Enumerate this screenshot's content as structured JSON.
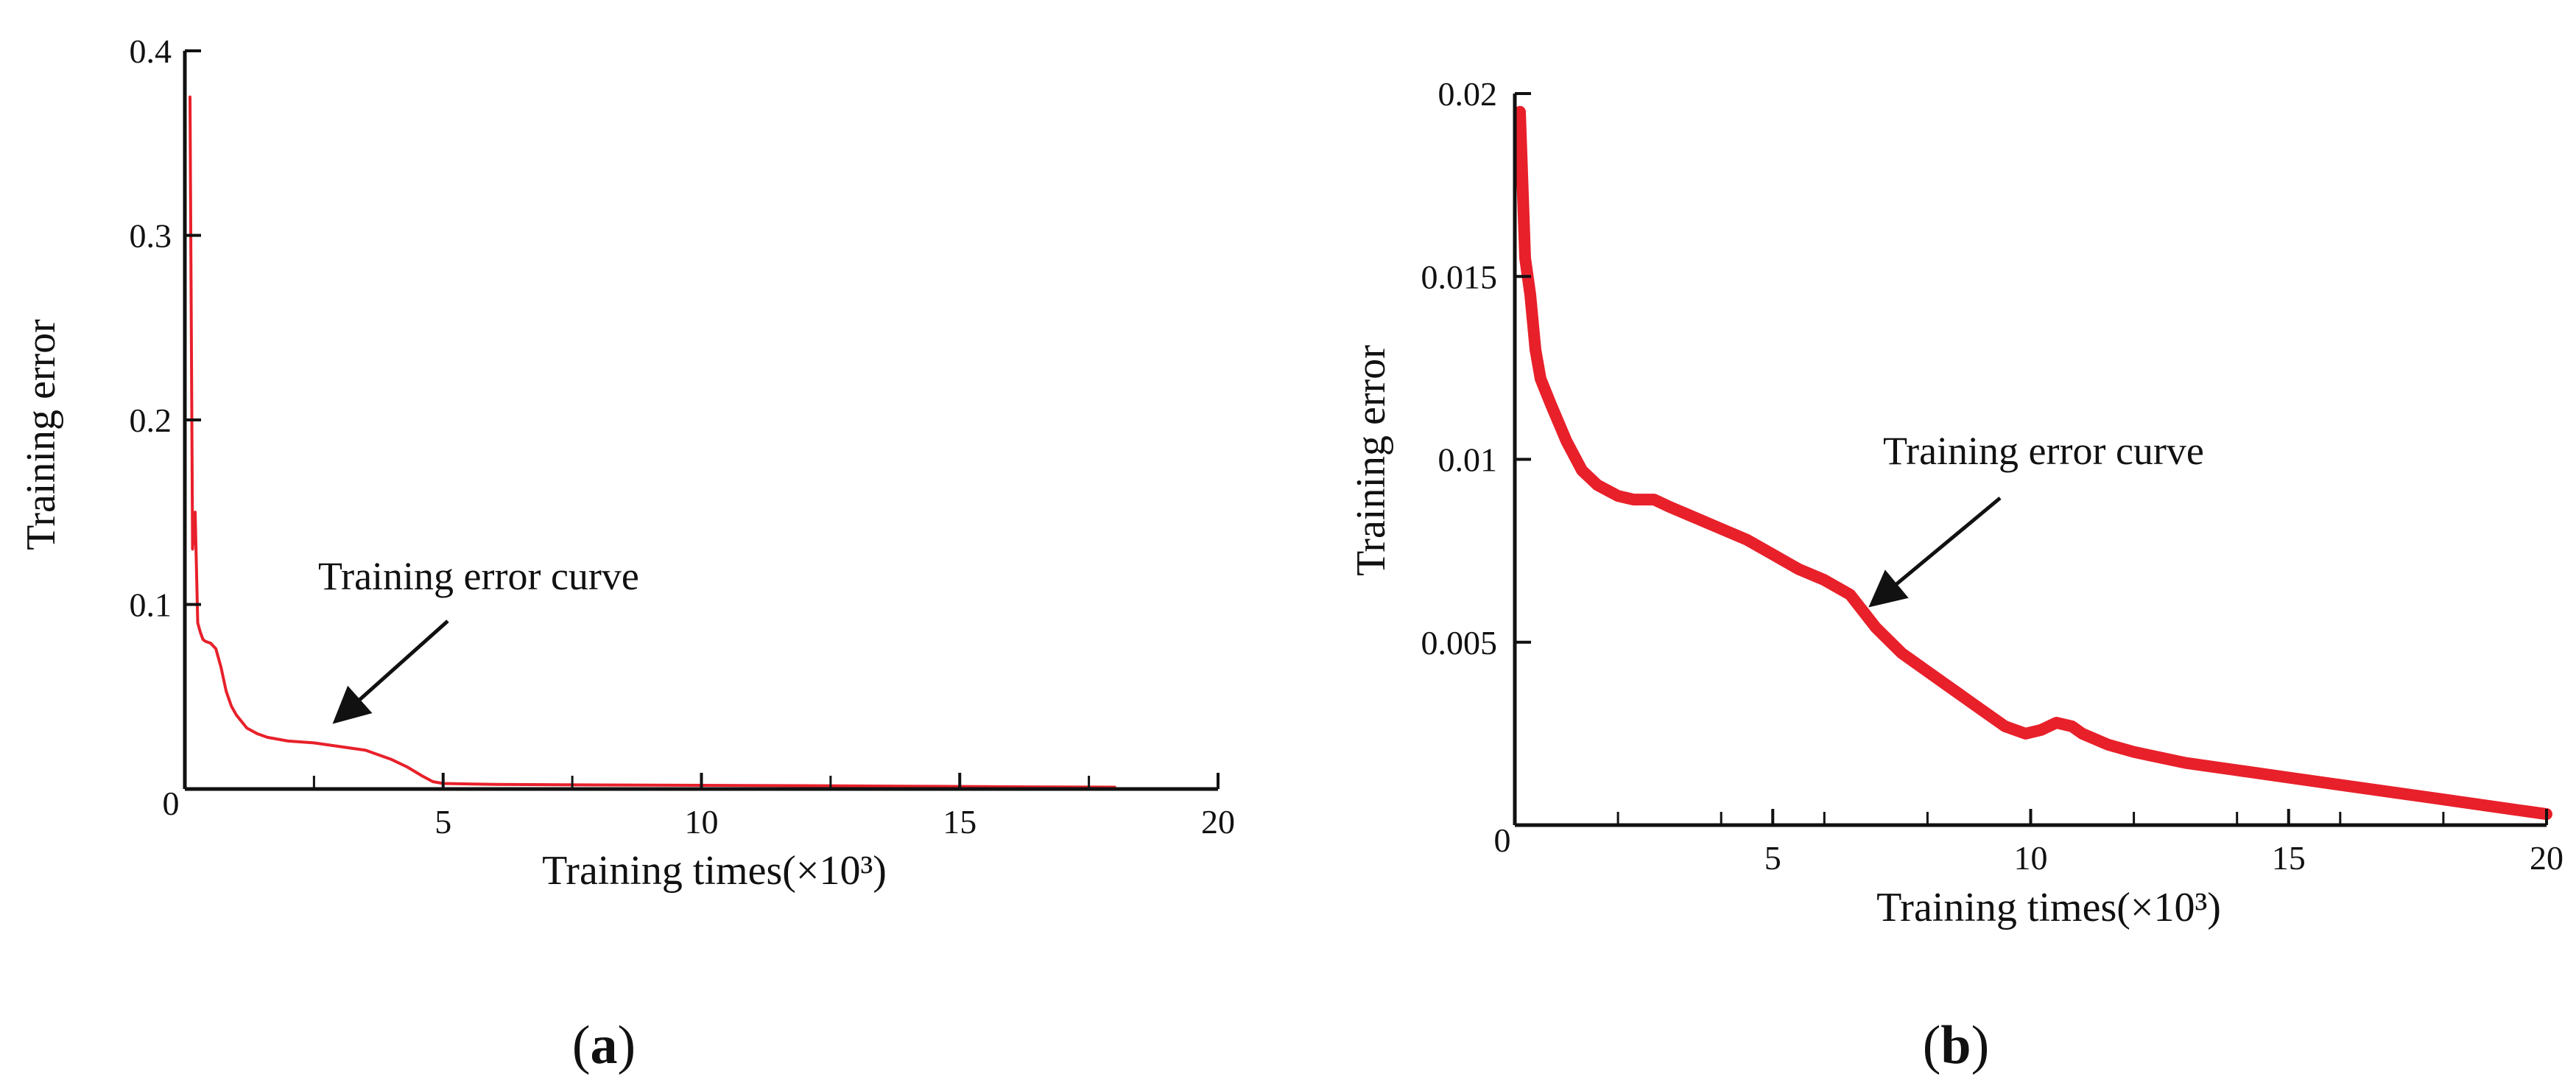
{
  "chart_data": [
    {
      "type": "line",
      "panel_label": "a",
      "title": "",
      "xlabel": "Training times(×10³)",
      "ylabel": "Training error",
      "xlim": [
        0,
        20
      ],
      "ylim": [
        0,
        0.4
      ],
      "x_ticks": [
        0,
        5,
        10,
        15,
        20
      ],
      "x_minor_ticks": [
        2.5,
        7.5,
        12.5,
        17.5
      ],
      "y_ticks": [
        0.1,
        0.2,
        0.3,
        0.4
      ],
      "y_tick_labels": [
        "0.1",
        "0.2",
        "0.3",
        "0.4"
      ],
      "grid": false,
      "legend": "none",
      "annotation": {
        "text": "Training error curve",
        "points_to": [
          2.8,
          0.032
        ]
      },
      "color": "#e8202a",
      "series": [
        {
          "x": [
            0.1,
            0.15,
            0.2,
            0.25,
            0.3,
            0.35,
            0.4,
            0.5,
            0.6,
            0.7,
            0.8,
            0.9,
            1.0,
            1.2,
            1.4,
            1.6,
            1.8,
            2.0,
            2.5,
            3.0,
            3.5,
            4.0,
            4.3,
            4.6,
            4.8,
            5.0,
            6,
            8,
            10,
            12,
            14,
            16,
            18
          ],
          "y": [
            0.375,
            0.13,
            0.15,
            0.09,
            0.085,
            0.081,
            0.08,
            0.079,
            0.076,
            0.066,
            0.053,
            0.045,
            0.04,
            0.033,
            0.03,
            0.028,
            0.027,
            0.026,
            0.025,
            0.023,
            0.021,
            0.016,
            0.012,
            0.007,
            0.004,
            0.003,
            0.0025,
            0.0022,
            0.002,
            0.0018,
            0.0015,
            0.0012,
            0.001
          ]
        }
      ]
    },
    {
      "type": "line",
      "panel_label": "b",
      "title": "",
      "xlabel": "Training times(×10³)",
      "ylabel": "Training error",
      "xlim": [
        0,
        20
      ],
      "ylim": [
        0,
        0.02
      ],
      "x_ticks": [
        0,
        5,
        10,
        15,
        20
      ],
      "x_minor_ticks": [
        2,
        4,
        6,
        8,
        12,
        14,
        16,
        18
      ],
      "y_ticks": [
        0.005,
        0.01,
        0.015,
        0.02
      ],
      "y_tick_labels": [
        "0.005",
        "0.01",
        "0.015",
        "0.02"
      ],
      "grid": false,
      "legend": "none",
      "annotation": {
        "text": "Training error curve",
        "points_to": [
          6.7,
          0.0057
        ]
      },
      "color": "#e8202a",
      "series": [
        {
          "x": [
            0.1,
            0.2,
            0.3,
            0.4,
            0.5,
            0.7,
            1.0,
            1.3,
            1.6,
            2.0,
            2.3,
            2.7,
            3.0,
            3.5,
            4.0,
            4.5,
            5.0,
            5.5,
            6.0,
            6.5,
            7.0,
            7.5,
            8.0,
            8.5,
            9.0,
            9.5,
            9.9,
            10.2,
            10.5,
            10.8,
            11.0,
            11.5,
            12.0,
            13,
            14,
            15,
            16,
            17,
            18,
            19,
            20
          ],
          "y": [
            0.0195,
            0.0155,
            0.0145,
            0.013,
            0.0122,
            0.0115,
            0.0105,
            0.0097,
            0.0093,
            0.009,
            0.0089,
            0.0089,
            0.0087,
            0.0084,
            0.0081,
            0.0078,
            0.0074,
            0.007,
            0.0067,
            0.0063,
            0.0054,
            0.0047,
            0.0042,
            0.0037,
            0.0032,
            0.0027,
            0.0025,
            0.0026,
            0.0028,
            0.0027,
            0.0025,
            0.0022,
            0.002,
            0.0017,
            0.0015,
            0.0013,
            0.0011,
            0.0009,
            0.0007,
            0.0005,
            0.0003
          ]
        }
      ]
    }
  ]
}
